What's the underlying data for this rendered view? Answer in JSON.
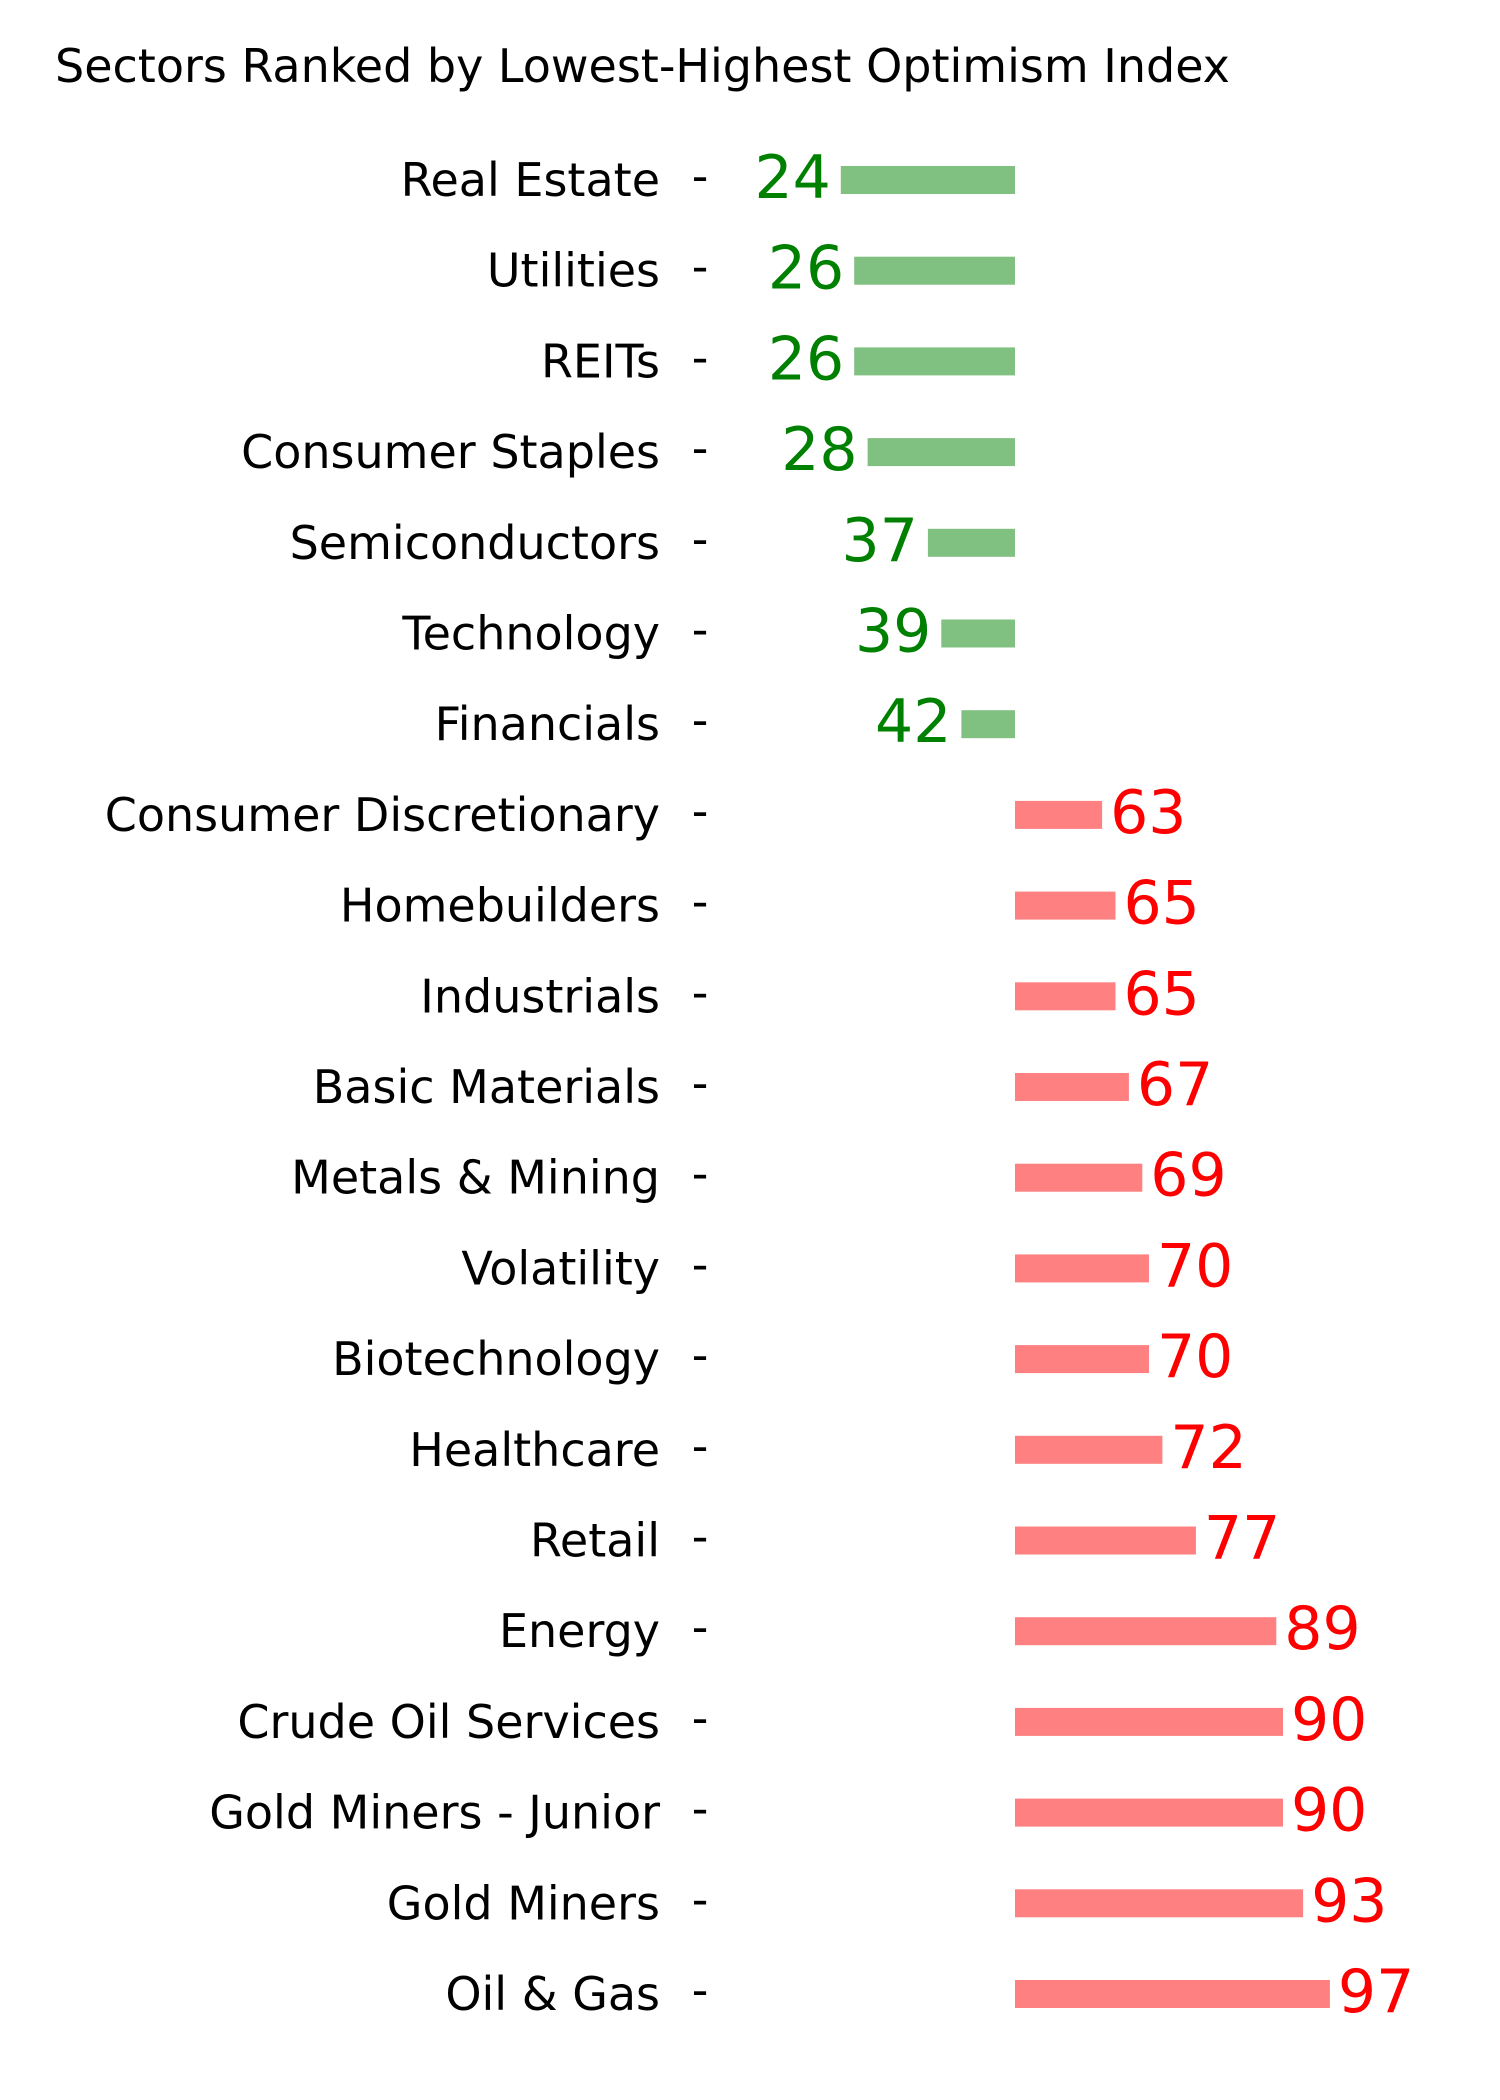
{
  "chart_data": {
    "type": "bar",
    "orientation": "horizontal",
    "title": "Sectors Ranked by Lowest-Highest Optimism Index",
    "xlabel": "",
    "ylabel": "",
    "baseline": 50,
    "xlim": [
      4,
      104
    ],
    "grid": false,
    "categories": [
      "Real Estate",
      "Utilities",
      "REITs",
      "Consumer Staples",
      "Semiconductors",
      "Technology",
      "Financials",
      "Consumer Discretionary",
      "Homebuilders",
      "Industrials",
      "Basic Materials",
      "Metals & Mining",
      "Volatility",
      "Biotechnology",
      "Healthcare",
      "Retail",
      "Energy",
      "Crude Oil Services",
      "Gold Miners - Junior",
      "Gold Miners",
      "Oil & Gas"
    ],
    "values": [
      24,
      26,
      26,
      28,
      37,
      39,
      42,
      63,
      65,
      65,
      67,
      69,
      70,
      70,
      72,
      77,
      89,
      90,
      90,
      93,
      97
    ],
    "colors": {
      "low_bar": "#80c080",
      "low_text": "#008000",
      "high_bar": "#ff8080",
      "high_text": "#ff0000"
    }
  }
}
